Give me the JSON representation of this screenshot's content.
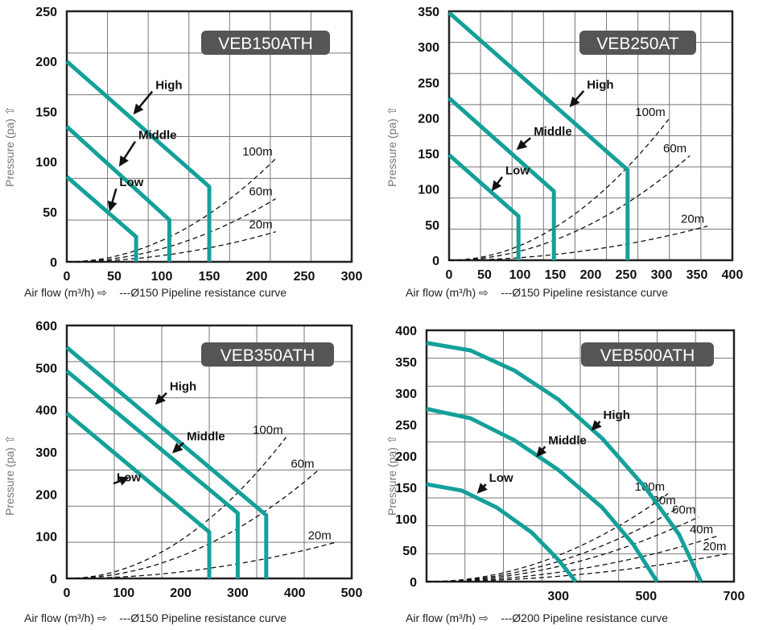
{
  "chart_data": [
    {
      "type": "line",
      "model": "VEB150ATH",
      "xlim": [
        0,
        300
      ],
      "ylim": [
        0,
        250
      ],
      "xticks": [
        "0",
        "50",
        "100",
        "150",
        "200",
        "250",
        "300"
      ],
      "yticks": [
        "0",
        "50",
        "100",
        "150",
        "200",
        "250"
      ],
      "ylabel": "Pressure  (pa) ⇧",
      "xlabel": "Air flow  (m³/h) ⇨",
      "legend_note": "---Ø150 Pipeline resistance curve",
      "series": [
        {
          "name": "High",
          "points": [
            [
              0,
              200
            ],
            [
              150,
              75
            ],
            [
              150,
              0
            ]
          ]
        },
        {
          "name": "Middle",
          "points": [
            [
              0,
              135
            ],
            [
              108,
              42
            ],
            [
              108,
              0
            ]
          ]
        },
        {
          "name": "Low",
          "points": [
            [
              0,
              85
            ],
            [
              73,
              25
            ],
            [
              73,
              0
            ]
          ]
        }
      ],
      "resistance": [
        {
          "name": "100m",
          "x_end": 220,
          "y_end": 103
        },
        {
          "name": "60m",
          "x_end": 220,
          "y_end": 63
        },
        {
          "name": "20m",
          "x_end": 220,
          "y_end": 30
        }
      ],
      "arrows": [
        {
          "label": "High",
          "at": [
            70,
            147
          ],
          "label_at": [
            90,
            170
          ]
        },
        {
          "label": "Middle",
          "at": [
            55,
            95
          ],
          "label_at": [
            72,
            120
          ]
        },
        {
          "label": "Low",
          "at": [
            45,
            50
          ],
          "label_at": [
            52,
            73
          ]
        }
      ]
    },
    {
      "type": "line",
      "model": "VEB250AT",
      "xlim": [
        0,
        400
      ],
      "ylim": [
        0,
        350
      ],
      "xticks": [
        "0",
        "50",
        "100",
        "150",
        "200",
        "250",
        "300",
        "350",
        "400"
      ],
      "yticks": [
        "0",
        "50",
        "100",
        "150",
        "200",
        "250",
        "300",
        "350"
      ],
      "ylabel": "Pressure  (pa) ⇧",
      "xlabel": "Air flow  (m³/h) ⇨",
      "legend_note": "---Ø150 Pipeline resistance curve",
      "series": [
        {
          "name": "High",
          "points": [
            [
              0,
              348
            ],
            [
              252,
              127
            ],
            [
              252,
              0
            ]
          ]
        },
        {
          "name": "Middle",
          "points": [
            [
              0,
              228
            ],
            [
              148,
              97
            ],
            [
              148,
              0
            ]
          ]
        },
        {
          "name": "Low",
          "points": [
            [
              0,
              148
            ],
            [
              98,
              62
            ],
            [
              98,
              0
            ]
          ]
        }
      ],
      "resistance": [
        {
          "name": "100m",
          "x_end": 310,
          "y_end": 198
        },
        {
          "name": "60m",
          "x_end": 340,
          "y_end": 147
        },
        {
          "name": "20m",
          "x_end": 365,
          "y_end": 48
        }
      ],
      "arrows": [
        {
          "label": "High",
          "at": [
            170,
            215
          ],
          "label_at": [
            190,
            238
          ]
        },
        {
          "label": "Middle",
          "at": [
            95,
            155
          ],
          "label_at": [
            115,
            172
          ]
        },
        {
          "label": "Low",
          "at": [
            60,
            97
          ],
          "label_at": [
            75,
            117
          ]
        }
      ]
    },
    {
      "type": "line",
      "model": "VEB350ATH",
      "xlim": [
        0,
        500
      ],
      "ylim": [
        0,
        600
      ],
      "xticks": [
        "0",
        "100",
        "200",
        "300",
        "400",
        "500"
      ],
      "yticks": [
        "0",
        "100",
        "200",
        "300",
        "400",
        "500",
        "600"
      ],
      "ylabel": "Pressure  (pa) ⇧",
      "xlabel": "Air flow  (m³/h) ⇨",
      "legend_note": "---Ø150 Pipeline resistance curve",
      "series": [
        {
          "name": "High",
          "points": [
            [
              0,
              548
            ],
            [
              350,
              150
            ],
            [
              350,
              0
            ]
          ]
        },
        {
          "name": "Middle",
          "points": [
            [
              0,
              492
            ],
            [
              300,
              155
            ],
            [
              300,
              0
            ]
          ]
        },
        {
          "name": "Low",
          "points": [
            [
              0,
              392
            ],
            [
              250,
              110
            ],
            [
              250,
              0
            ]
          ]
        }
      ],
      "resistance": [
        {
          "name": "100m",
          "x_end": 385,
          "y_end": 335
        },
        {
          "name": "60m",
          "x_end": 440,
          "y_end": 255
        },
        {
          "name": "20m",
          "x_end": 470,
          "y_end": 85
        }
      ],
      "arrows": [
        {
          "label": "High",
          "at": [
            155,
            412
          ],
          "label_at": [
            175,
            440
          ]
        },
        {
          "label": "Middle",
          "at": [
            185,
            297
          ],
          "label_at": [
            205,
            322
          ]
        },
        {
          "label": "Low",
          "at": [
            110,
            240
          ],
          "label_at": [
            82,
            225
          ]
        }
      ]
    },
    {
      "type": "line",
      "model": "VEB500ATH",
      "xlim": [
        0,
        700
      ],
      "ylim": [
        0,
        400
      ],
      "xticks": [
        "300",
        "500",
        "700"
      ],
      "yticks": [
        "0",
        "50",
        "100",
        "150",
        "200",
        "250",
        "300",
        "350",
        "400"
      ],
      "ylabel": "Pressure  (pa) ⇧",
      "xlabel": "Air flow  (m³/h) ⇨",
      "legend_note": "---Ø200 Pipeline resistance curve",
      "series": [
        {
          "name": "High",
          "points": [
            [
              0,
              380
            ],
            [
              100,
              368
            ],
            [
              200,
              336
            ],
            [
              300,
              290
            ],
            [
              400,
              228
            ],
            [
              500,
              148
            ],
            [
              575,
              75
            ],
            [
              625,
              0
            ]
          ]
        },
        {
          "name": "Middle",
          "points": [
            [
              0,
              275
            ],
            [
              100,
              260
            ],
            [
              200,
              225
            ],
            [
              300,
              178
            ],
            [
              400,
              118
            ],
            [
              470,
              60
            ],
            [
              525,
              0
            ]
          ]
        },
        {
          "name": "Low",
          "points": [
            [
              0,
              155
            ],
            [
              80,
              145
            ],
            [
              160,
              118
            ],
            [
              240,
              78
            ],
            [
              300,
              35
            ],
            [
              340,
              0
            ]
          ]
        }
      ],
      "resistance": [
        {
          "name": "100m",
          "x_end": 550,
          "y_end": 140
        },
        {
          "name": "80m",
          "x_end": 575,
          "y_end": 118
        },
        {
          "name": "60m",
          "x_end": 620,
          "y_end": 103
        },
        {
          "name": "40m",
          "x_end": 660,
          "y_end": 72
        },
        {
          "name": "20m",
          "x_end": 690,
          "y_end": 45
        }
      ],
      "arrows": [
        {
          "label": "High",
          "at": [
            375,
            240
          ],
          "label_at": [
            395,
            255
          ]
        },
        {
          "label": "Middle",
          "at": [
            250,
            198
          ],
          "label_at": [
            270,
            215
          ]
        },
        {
          "label": "Low",
          "at": [
            115,
            140
          ],
          "label_at": [
            135,
            155
          ]
        }
      ]
    }
  ],
  "colors": {
    "curve": "#14a09a",
    "frame": "#222222",
    "grid": "#777777",
    "badge": "#555555"
  },
  "icons": {
    "arrow": "black-arrow-icon",
    "flow_arrow": "right-outline-arrow-icon",
    "pressure_arrow": "up-outline-arrow-icon"
  }
}
